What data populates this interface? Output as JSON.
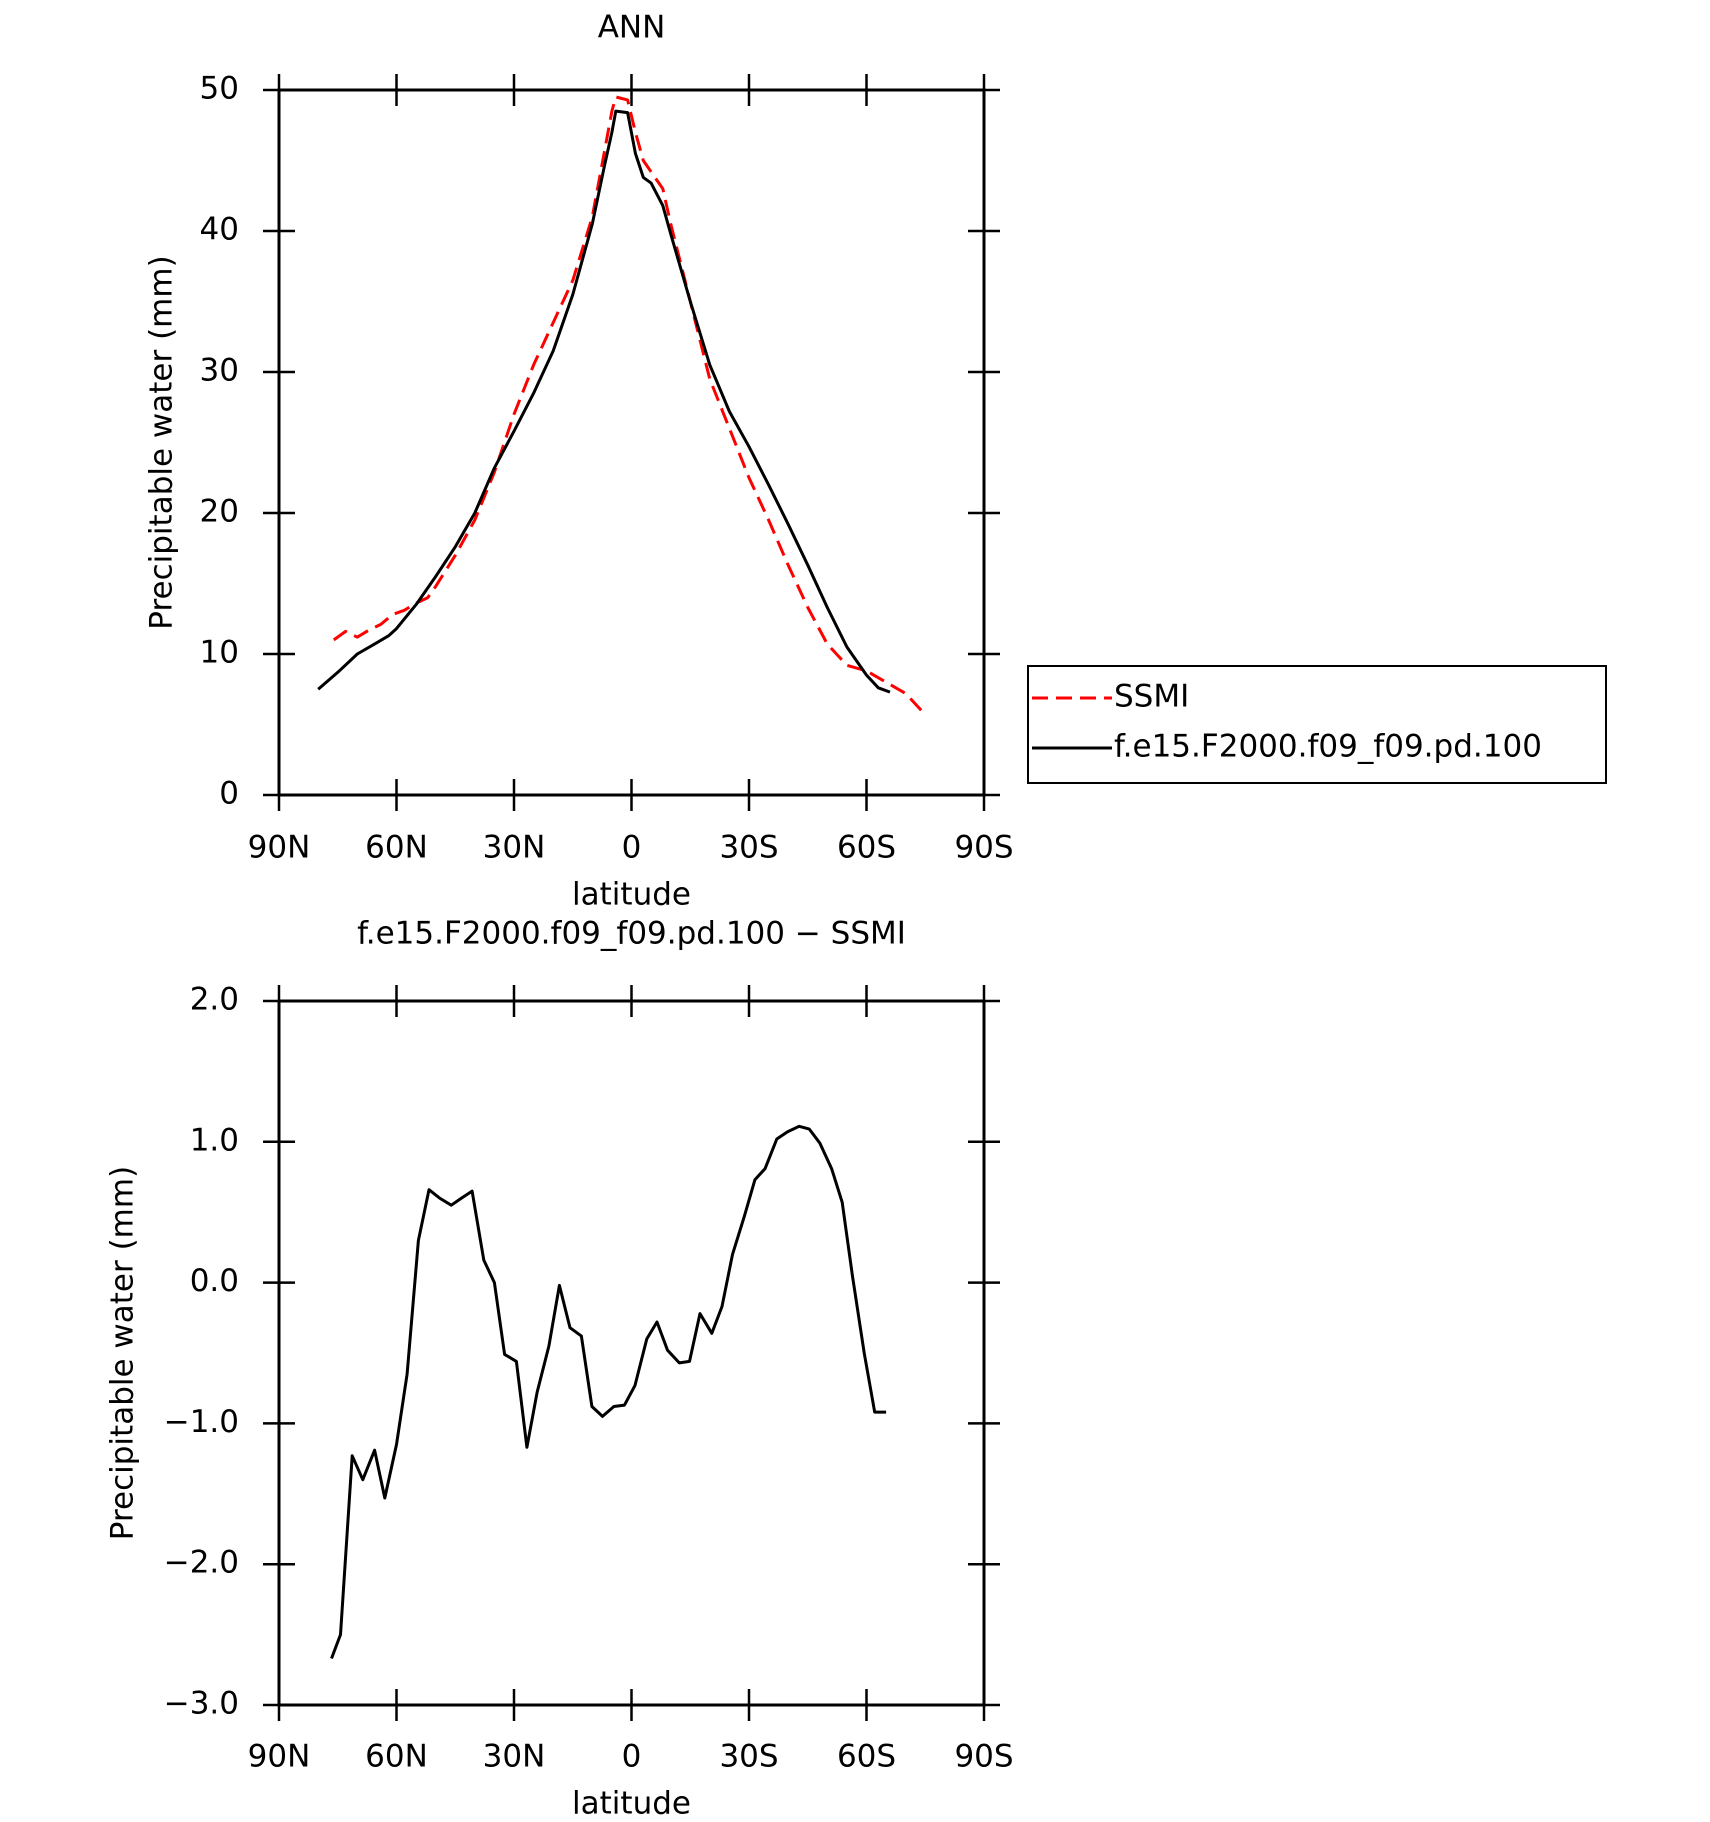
{
  "chart_data": [
    {
      "type": "line",
      "title": "ANN",
      "x_label": "latitude",
      "y_label": "Precipitable water (mm)",
      "xlim": [
        90,
        -90
      ],
      "xticks": [
        {
          "value": 90,
          "label": "90N"
        },
        {
          "value": 60,
          "label": "60N"
        },
        {
          "value": 30,
          "label": "30N"
        },
        0,
        {
          "value": -30,
          "label": "30S"
        },
        {
          "value": -60,
          "label": "60S"
        },
        {
          "value": -90,
          "label": "90S"
        }
      ],
      "ylim": [
        0,
        50
      ],
      "yticks": [
        0,
        10,
        20,
        30,
        40,
        50
      ],
      "legend": "outside right",
      "series": [
        {
          "name": "SSMI",
          "color": "#ff0000",
          "style": "dashed",
          "x": [
            76,
            73,
            70,
            67,
            64,
            61,
            58,
            55,
            52,
            50,
            45,
            40,
            35,
            30,
            25,
            20,
            15,
            10,
            7,
            5,
            4,
            1,
            -1,
            -3,
            -5,
            -8,
            -10,
            -15,
            -20,
            -25,
            -30,
            -35,
            -40,
            -45,
            -50,
            -55,
            -60,
            -65,
            -70,
            -74
          ],
          "values": [
            11.0,
            11.6,
            11.2,
            11.7,
            12.1,
            12.8,
            13.1,
            13.6,
            14.0,
            14.8,
            17.0,
            19.5,
            22.9,
            27.0,
            30.5,
            33.5,
            36.5,
            41.0,
            45.5,
            48.5,
            49.5,
            49.3,
            47.0,
            45.0,
            44.2,
            43.0,
            40.5,
            35.0,
            29.5,
            26.0,
            22.5,
            19.5,
            16.3,
            13.3,
            10.7,
            9.2,
            8.8,
            8.0,
            7.2,
            6.0
          ]
        },
        {
          "name": "f.e15.F2000.f09_f09.pd.100",
          "color": "#000000",
          "style": "solid",
          "x": [
            80,
            75,
            70,
            65,
            62,
            60,
            55,
            50,
            45,
            40,
            35,
            30,
            25,
            20,
            15,
            10,
            7,
            5,
            4,
            1,
            -1,
            -3,
            -5,
            -8,
            -10,
            -15,
            -20,
            -25,
            -30,
            -35,
            -40,
            -45,
            -50,
            -55,
            -60,
            -63,
            -66
          ],
          "values": [
            7.5,
            8.7,
            10.0,
            10.8,
            11.3,
            11.8,
            13.5,
            15.5,
            17.6,
            20.0,
            23.2,
            25.8,
            28.5,
            31.5,
            35.5,
            40.5,
            44.5,
            47.0,
            48.5,
            48.4,
            45.5,
            43.8,
            43.4,
            41.8,
            39.8,
            35.0,
            30.5,
            27.2,
            24.7,
            22.0,
            19.2,
            16.3,
            13.3,
            10.5,
            8.5,
            7.6,
            7.3
          ]
        }
      ]
    },
    {
      "type": "line",
      "title": "f.e15.F2000.f09_f09.pd.100 − SSMI",
      "x_label": "latitude",
      "y_label": "Precipitable water (mm)",
      "xlim": [
        90,
        -90
      ],
      "xticks": [
        {
          "value": 90,
          "label": "90N"
        },
        {
          "value": 60,
          "label": "60N"
        },
        {
          "value": 30,
          "label": "30N"
        },
        0,
        {
          "value": -30,
          "label": "30S"
        },
        {
          "value": -60,
          "label": "60S"
        },
        {
          "value": -90,
          "label": "90S"
        }
      ],
      "ylim": [
        -3,
        2
      ],
      "yticks": [
        {
          "value": -3,
          "label": "−3.0"
        },
        {
          "value": -2,
          "label": "−2.0"
        },
        {
          "value": -1,
          "label": "−1.0"
        },
        {
          "value": 0,
          "label": "0.0"
        },
        {
          "value": 1,
          "label": "1.0"
        },
        {
          "value": 2,
          "label": "2.0"
        }
      ],
      "series": [
        {
          "color": "#000000",
          "style": "solid",
          "x": [
            76.6,
            74.3,
            71.3,
            68.6,
            65.6,
            63.0,
            60.0,
            57.3,
            54.4,
            51.7,
            49.0,
            46.0,
            43.4,
            40.7,
            37.7,
            35.0,
            32.4,
            29.4,
            26.7,
            24.1,
            21.1,
            18.4,
            15.7,
            12.8,
            10.1,
            7.4,
            4.5,
            1.8,
            -0.9,
            -3.9,
            -6.5,
            -9.2,
            -12.2,
            -14.8,
            -17.5,
            -20.5,
            -23.1,
            -25.8,
            -28.8,
            -31.5,
            -34.1,
            -37.1,
            -39.8,
            -42.8,
            -45.4,
            -48.1,
            -51.1,
            -53.8,
            -56.4,
            -59.4,
            -62.1,
            -65.0
          ],
          "values": [
            -2.67,
            -2.5,
            -1.23,
            -1.4,
            -1.19,
            -1.53,
            -1.15,
            -0.65,
            0.3,
            0.66,
            0.6,
            0.55,
            0.6,
            0.65,
            0.16,
            0.0,
            -0.51,
            -0.56,
            -1.17,
            -0.78,
            -0.45,
            -0.02,
            -0.32,
            -0.38,
            -0.88,
            -0.95,
            -0.88,
            -0.87,
            -0.73,
            -0.4,
            -0.28,
            -0.48,
            -0.57,
            -0.56,
            -0.22,
            -0.36,
            -0.17,
            0.2,
            0.47,
            0.73,
            0.81,
            1.02,
            1.07,
            1.11,
            1.09,
            0.99,
            0.81,
            0.57,
            0.05,
            -0.5,
            -0.92,
            -0.92
          ]
        }
      ]
    }
  ]
}
